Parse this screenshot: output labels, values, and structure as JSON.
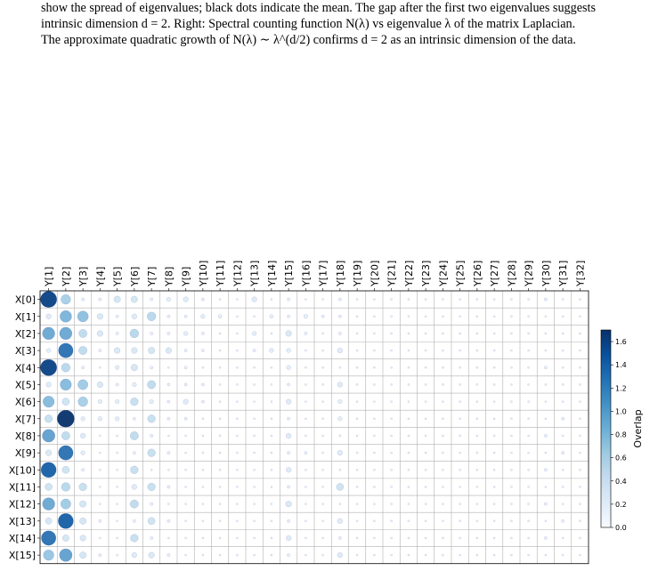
{
  "caption": {
    "line1": "show the spread of eigenvalues; black dots indicate the mean. The gap after the first two eigenvalues suggests",
    "line2": "intrinsic dimension d = 2. Right: Spectral counting function N(λ) vs eigenvalue λ of the matrix Laplacian.",
    "line3": "The approximate quadratic growth of N(λ) ∼ λ^(d/2) confirms d = 2 as an intrinsic dimension of the data."
  },
  "chart_data": {
    "type": "heatmap",
    "title": "",
    "xlabel": "",
    "ylabel": "",
    "x_categories": [
      "Y[1]",
      "Y[2]",
      "Y[3]",
      "Y[4]",
      "Y[5]",
      "Y[6]",
      "Y[7]",
      "Y[8]",
      "Y[9]",
      "Y[10]",
      "Y[11]",
      "Y[12]",
      "Y[13]",
      "Y[14]",
      "Y[15]",
      "Y[16]",
      "Y[17]",
      "Y[18]",
      "Y[19]",
      "Y[20]",
      "Y[21]",
      "Y[22]",
      "Y[23]",
      "Y[24]",
      "Y[25]",
      "Y[26]",
      "Y[27]",
      "Y[28]",
      "Y[29]",
      "Y[30]",
      "Y[31]",
      "Y[32]"
    ],
    "y_categories": [
      "X[0]",
      "X[1]",
      "X[2]",
      "X[3]",
      "X[4]",
      "X[5]",
      "X[6]",
      "X[7]",
      "X[8]",
      "X[9]",
      "X[10]",
      "X[11]",
      "X[12]",
      "X[13]",
      "X[14]",
      "X[15]"
    ],
    "values": [
      [
        1.55,
        0.55,
        0.05,
        0.05,
        0.25,
        0.25,
        0.05,
        0.1,
        0.15,
        0.05,
        0.02,
        0.02,
        0.15,
        0.02,
        0.05,
        0.02,
        0.02,
        0.05,
        0.02,
        0.02,
        0.02,
        0.02,
        0.02,
        0.02,
        0.02,
        0.02,
        0.02,
        0.02,
        0.02,
        0.05,
        0.02,
        0.02
      ],
      [
        0.15,
        0.8,
        0.7,
        0.2,
        0.05,
        0.15,
        0.45,
        0.05,
        0.05,
        0.1,
        0.08,
        0.02,
        0.02,
        0.08,
        0.05,
        0.1,
        0.05,
        0.05,
        0.02,
        0.02,
        0.02,
        0.02,
        0.02,
        0.02,
        0.02,
        0.02,
        0.02,
        0.02,
        0.02,
        0.02,
        0.02,
        0.02
      ],
      [
        0.9,
        0.9,
        0.4,
        0.2,
        0.05,
        0.45,
        0.05,
        0.05,
        0.1,
        0.05,
        0.02,
        0.02,
        0.1,
        0.02,
        0.2,
        0.05,
        0.02,
        0.05,
        0.02,
        0.02,
        0.02,
        0.02,
        0.02,
        0.02,
        0.02,
        0.02,
        0.02,
        0.02,
        0.02,
        0.02,
        0.02,
        0.02
      ],
      [
        0.1,
        1.25,
        0.4,
        0.05,
        0.2,
        0.2,
        0.25,
        0.2,
        0.05,
        0.05,
        0.02,
        0.02,
        0.05,
        0.1,
        0.1,
        0.02,
        0.02,
        0.15,
        0.02,
        0.02,
        0.02,
        0.02,
        0.02,
        0.02,
        0.02,
        0.02,
        0.02,
        0.02,
        0.02,
        0.02,
        0.02,
        0.02
      ],
      [
        1.55,
        0.45,
        0.05,
        0.02,
        0.1,
        0.25,
        0.05,
        0.02,
        0.05,
        0.02,
        0.02,
        0.02,
        0.02,
        0.02,
        0.1,
        0.02,
        0.02,
        0.02,
        0.02,
        0.02,
        0.02,
        0.02,
        0.02,
        0.02,
        0.02,
        0.02,
        0.02,
        0.02,
        0.02,
        0.05,
        0.02,
        0.02
      ],
      [
        0.15,
        0.75,
        0.6,
        0.2,
        0.05,
        0.1,
        0.4,
        0.05,
        0.05,
        0.05,
        0.02,
        0.02,
        0.02,
        0.02,
        0.05,
        0.02,
        0.02,
        0.15,
        0.02,
        0.02,
        0.02,
        0.02,
        0.02,
        0.02,
        0.02,
        0.02,
        0.02,
        0.02,
        0.02,
        0.02,
        0.02,
        0.02
      ],
      [
        0.75,
        0.3,
        0.55,
        0.1,
        0.1,
        0.35,
        0.1,
        0.05,
        0.15,
        0.05,
        0.02,
        0.02,
        0.02,
        0.02,
        0.15,
        0.02,
        0.02,
        0.1,
        0.02,
        0.02,
        0.02,
        0.02,
        0.02,
        0.02,
        0.02,
        0.02,
        0.02,
        0.02,
        0.02,
        0.02,
        0.02,
        0.02
      ],
      [
        0.35,
        1.7,
        0.1,
        0.1,
        0.1,
        0.05,
        0.35,
        0.05,
        0.05,
        0.02,
        0.02,
        0.02,
        0.02,
        0.02,
        0.05,
        0.02,
        0.02,
        0.1,
        0.02,
        0.02,
        0.02,
        0.02,
        0.02,
        0.02,
        0.02,
        0.02,
        0.02,
        0.02,
        0.02,
        0.02,
        0.05,
        0.02
      ],
      [
        0.95,
        0.4,
        0.15,
        0.02,
        0.02,
        0.4,
        0.05,
        0.02,
        0.02,
        0.02,
        0.02,
        0.02,
        0.02,
        0.02,
        0.15,
        0.02,
        0.02,
        0.02,
        0.02,
        0.02,
        0.02,
        0.02,
        0.02,
        0.02,
        0.02,
        0.02,
        0.02,
        0.02,
        0.02,
        0.05,
        0.02,
        0.02
      ],
      [
        0.2,
        1.25,
        0.1,
        0.02,
        0.02,
        0.05,
        0.35,
        0.05,
        0.02,
        0.02,
        0.02,
        0.02,
        0.02,
        0.02,
        0.05,
        0.05,
        0.02,
        0.15,
        0.02,
        0.02,
        0.02,
        0.02,
        0.02,
        0.02,
        0.02,
        0.02,
        0.02,
        0.02,
        0.02,
        0.02,
        0.05,
        0.02
      ],
      [
        1.35,
        0.3,
        0.05,
        0.02,
        0.02,
        0.35,
        0.02,
        0.02,
        0.02,
        0.02,
        0.02,
        0.02,
        0.02,
        0.02,
        0.15,
        0.02,
        0.02,
        0.02,
        0.02,
        0.02,
        0.02,
        0.02,
        0.02,
        0.02,
        0.02,
        0.02,
        0.02,
        0.02,
        0.02,
        0.05,
        0.02,
        0.02
      ],
      [
        0.3,
        0.45,
        0.35,
        0.02,
        0.02,
        0.15,
        0.35,
        0.05,
        0.02,
        0.02,
        0.02,
        0.02,
        0.02,
        0.02,
        0.05,
        0.02,
        0.02,
        0.3,
        0.02,
        0.02,
        0.02,
        0.02,
        0.02,
        0.02,
        0.02,
        0.02,
        0.02,
        0.02,
        0.02,
        0.02,
        0.02,
        0.02
      ],
      [
        0.9,
        0.6,
        0.25,
        0.02,
        0.02,
        0.4,
        0.05,
        0.02,
        0.02,
        0.02,
        0.02,
        0.02,
        0.02,
        0.02,
        0.2,
        0.02,
        0.02,
        0.02,
        0.02,
        0.02,
        0.02,
        0.02,
        0.02,
        0.02,
        0.02,
        0.02,
        0.02,
        0.02,
        0.02,
        0.05,
        0.02,
        0.02
      ],
      [
        0.25,
        1.35,
        0.25,
        0.05,
        0.02,
        0.05,
        0.3,
        0.05,
        0.02,
        0.02,
        0.02,
        0.02,
        0.02,
        0.02,
        0.05,
        0.02,
        0.02,
        0.15,
        0.02,
        0.02,
        0.02,
        0.02,
        0.02,
        0.02,
        0.02,
        0.02,
        0.02,
        0.02,
        0.02,
        0.02,
        0.05,
        0.02
      ],
      [
        1.25,
        0.25,
        0.2,
        0.02,
        0.02,
        0.35,
        0.05,
        0.02,
        0.02,
        0.02,
        0.02,
        0.02,
        0.02,
        0.02,
        0.15,
        0.02,
        0.02,
        0.05,
        0.02,
        0.02,
        0.02,
        0.02,
        0.02,
        0.02,
        0.02,
        0.02,
        0.02,
        0.02,
        0.02,
        0.05,
        0.02,
        0.02
      ],
      [
        0.65,
        0.95,
        0.25,
        0.05,
        0.02,
        0.15,
        0.2,
        0.05,
        0.02,
        0.02,
        0.02,
        0.02,
        0.02,
        0.02,
        0.05,
        0.02,
        0.02,
        0.15,
        0.02,
        0.02,
        0.02,
        0.02,
        0.02,
        0.02,
        0.02,
        0.02,
        0.02,
        0.02,
        0.02,
        0.02,
        0.02,
        0.02
      ]
    ],
    "colorbar": {
      "label": "Overlap",
      "range": [
        0.0,
        1.7
      ],
      "ticks": [
        "0.0",
        "0.2",
        "0.4",
        "0.6",
        "0.8",
        "1.0",
        "1.2",
        "1.4",
        "1.6"
      ],
      "colormap": "Blues"
    },
    "grid": true
  }
}
